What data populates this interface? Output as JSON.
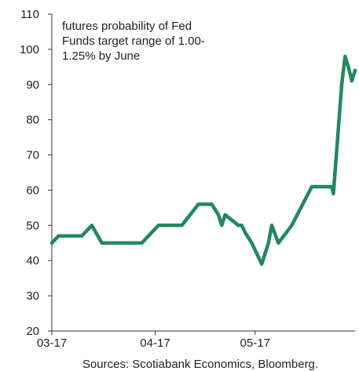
{
  "chart_data": {
    "type": "line",
    "title": "",
    "xlabel": "",
    "ylabel": "",
    "ylim": [
      20,
      110
    ],
    "yticks": [
      20,
      30,
      40,
      50,
      60,
      70,
      80,
      90,
      100,
      110
    ],
    "xlim": [
      "2017-03-01",
      "2017-05-31"
    ],
    "xticks": [
      {
        "date": "2017-03-01",
        "label": "03-17"
      },
      {
        "date": "2017-04-01",
        "label": "04-17"
      },
      {
        "date": "2017-05-01",
        "label": "05-17"
      }
    ],
    "grid": false,
    "annotation": [
      "futures probability of Fed",
      "Funds target range of 1.00-",
      "1.25% by June"
    ],
    "source": "Sources: Scotiabank Economics, Bloomberg.",
    "line_color": "#24875f",
    "series": [
      {
        "x": [
          "2017-03-01",
          "2017-03-03",
          "2017-03-10",
          "2017-03-11",
          "2017-03-13",
          "2017-03-16",
          "2017-03-24",
          "2017-03-26",
          "2017-03-28",
          "2017-04-02",
          "2017-04-08",
          "2017-04-09",
          "2017-04-14",
          "2017-04-15",
          "2017-04-16",
          "2017-04-17",
          "2017-04-18",
          "2017-04-20",
          "2017-04-21",
          "2017-04-22",
          "2017-04-26",
          "2017-04-27",
          "2017-04-28",
          "2017-04-30",
          "2017-05-03",
          "2017-05-04",
          "2017-05-05",
          "2017-05-06",
          "2017-05-08",
          "2017-05-12",
          "2017-05-18",
          "2017-05-22",
          "2017-05-23",
          "2017-05-24",
          "2017-05-24T12:00",
          "2017-05-27",
          "2017-05-28",
          "2017-05-29",
          "2017-05-30",
          "2017-05-31"
        ],
        "values": [
          45,
          47,
          47,
          48,
          50,
          45,
          45,
          45,
          45,
          50,
          50,
          50,
          56,
          56,
          56,
          56,
          56,
          53,
          50,
          53,
          50,
          50,
          48,
          45,
          39,
          42,
          45,
          50,
          45,
          50,
          61,
          61,
          61,
          61,
          59,
          90,
          98,
          95,
          91,
          94
        ]
      }
    ]
  }
}
